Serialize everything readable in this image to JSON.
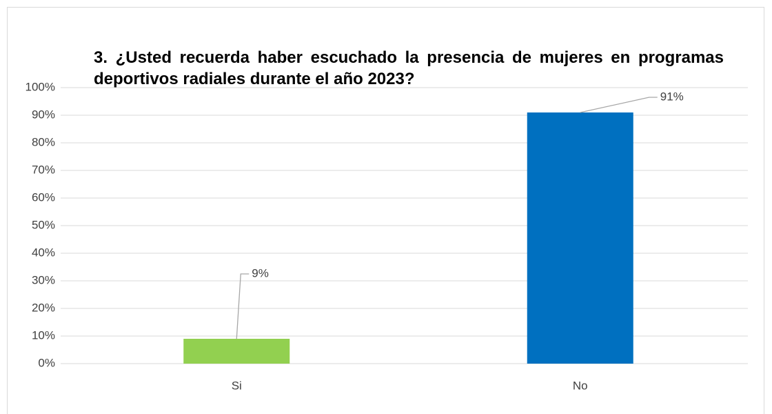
{
  "chart_data": {
    "type": "bar",
    "title": "3. ¿Usted recuerda haber escuchado la presencia de mujeres en programas deportivos radiales durante el año 2023?",
    "categories": [
      "Si",
      "No"
    ],
    "values": [
      9,
      91
    ],
    "value_labels": [
      "9%",
      "91%"
    ],
    "colors": [
      "#92d050",
      "#0070c0"
    ],
    "ylim": [
      0,
      100
    ],
    "yticks": [
      {
        "value": 0,
        "label": "0%"
      },
      {
        "value": 10,
        "label": "10%"
      },
      {
        "value": 20,
        "label": "20%"
      },
      {
        "value": 30,
        "label": "30%"
      },
      {
        "value": 40,
        "label": "40%"
      },
      {
        "value": 50,
        "label": "50%"
      },
      {
        "value": 60,
        "label": "60%"
      },
      {
        "value": 70,
        "label": "70%"
      },
      {
        "value": 80,
        "label": "80%"
      },
      {
        "value": 90,
        "label": "90%"
      },
      {
        "value": 100,
        "label": "100%"
      }
    ],
    "grid": true
  }
}
